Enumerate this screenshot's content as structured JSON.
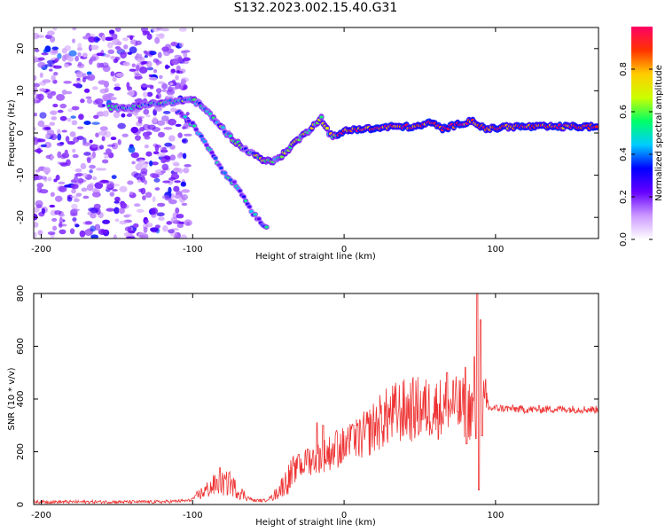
{
  "title": "S132.2023.002.15.40.G31",
  "chart_data": [
    {
      "type": "heatmap",
      "title": "",
      "xlabel": "Height of straight line (km)",
      "ylabel": "Frequency (Hz)",
      "xlim": [
        -205,
        168
      ],
      "ylim": [
        -25,
        25
      ],
      "xticks": [
        -200,
        -100,
        0,
        100
      ],
      "yticks": [
        -20,
        -10,
        0,
        10,
        20
      ],
      "colorbar": {
        "label": "Normalized spectral amplitude",
        "range": [
          0,
          1
        ],
        "ticks": [
          "0.0",
          "0.2",
          "0.4",
          "0.6",
          "0.8"
        ],
        "colormap": [
          "#ffffff",
          "#cc99ff",
          "#6600ff",
          "#0000ff",
          "#00ccff",
          "#00ff66",
          "#ccff00",
          "#ffcc00",
          "#ff3300",
          "#ff0066"
        ]
      },
      "noise_region": {
        "x_range": [
          -205,
          -103
        ],
        "y_range": [
          -25,
          25
        ],
        "amplitude": 0.15
      },
      "traces": [
        {
          "name": "main",
          "points": [
            [
              -155,
              6
            ],
            [
              -140,
              6
            ],
            [
              -125,
              7
            ],
            [
              -110,
              7.5
            ],
            [
              -100,
              8
            ],
            [
              -93,
              6
            ],
            [
              -85,
              3
            ],
            [
              -75,
              -1
            ],
            [
              -65,
              -4
            ],
            [
              -55,
              -6
            ],
            [
              -48,
              -7
            ],
            [
              -40,
              -5
            ],
            [
              -32,
              -2
            ],
            [
              -25,
              0
            ],
            [
              -20,
              2
            ],
            [
              -15,
              3.5
            ],
            [
              -10,
              0
            ],
            [
              -5,
              -1
            ],
            [
              0,
              0.5
            ],
            [
              10,
              1
            ],
            [
              20,
              1
            ],
            [
              30,
              1.5
            ],
            [
              40,
              1.5
            ],
            [
              50,
              1.5
            ],
            [
              55,
              2.5
            ],
            [
              60,
              2
            ],
            [
              65,
              1
            ],
            [
              70,
              1.5
            ],
            [
              75,
              2
            ],
            [
              80,
              2.5
            ],
            [
              85,
              3
            ],
            [
              90,
              1.5
            ],
            [
              95,
              1
            ],
            [
              100,
              1
            ],
            [
              105,
              1.5
            ],
            [
              120,
              1.5
            ],
            [
              140,
              1.5
            ],
            [
              168,
              1.5
            ]
          ]
        },
        {
          "name": "secondary",
          "points": [
            [
              -110,
              5
            ],
            [
              -100,
              2
            ],
            [
              -92,
              -2
            ],
            [
              -85,
              -6
            ],
            [
              -80,
              -9
            ],
            [
              -75,
              -11
            ],
            [
              -70,
              -13
            ],
            [
              -65,
              -16
            ],
            [
              -60,
              -19
            ],
            [
              -55,
              -21
            ],
            [
              -50,
              -23
            ]
          ]
        }
      ]
    },
    {
      "type": "line",
      "title": "",
      "xlabel": "Height of straight line (km)",
      "ylabel": "SNR (10 * v/v)",
      "xlim": [
        -205,
        168
      ],
      "ylim": [
        0,
        800
      ],
      "xticks": [
        -200,
        -100,
        0,
        100
      ],
      "yticks": [
        0,
        200,
        400,
        600,
        800
      ],
      "series": [
        {
          "color": "#ee3333",
          "trend": [
            [
              -205,
              10
            ],
            [
              -160,
              10
            ],
            [
              -120,
              10
            ],
            [
              -102,
              15
            ],
            [
              -95,
              40
            ],
            [
              -85,
              75
            ],
            [
              -75,
              80
            ],
            [
              -70,
              50
            ],
            [
              -60,
              15
            ],
            [
              -52,
              15
            ],
            [
              -45,
              40
            ],
            [
              -38,
              90
            ],
            [
              -30,
              140
            ],
            [
              -22,
              170
            ],
            [
              -12,
              190
            ],
            [
              -5,
              210
            ],
            [
              5,
              230
            ],
            [
              15,
              270
            ],
            [
              25,
              320
            ],
            [
              35,
              350
            ],
            [
              45,
              360
            ],
            [
              55,
              365
            ],
            [
              65,
              365
            ],
            [
              75,
              368
            ],
            [
              85,
              360
            ],
            [
              95,
              365
            ],
            [
              105,
              365
            ],
            [
              120,
              360
            ],
            [
              140,
              362
            ],
            [
              168,
              360
            ]
          ],
          "spikes": [
            [
              -82,
              140
            ],
            [
              -76,
              120
            ],
            [
              -30,
              190
            ],
            [
              -24,
              210
            ],
            [
              -18,
              310
            ],
            [
              -14,
              300
            ],
            [
              -5,
              280
            ],
            [
              2,
              250
            ],
            [
              6,
              300
            ],
            [
              68,
              500
            ],
            [
              72,
              470
            ],
            [
              80,
              520
            ],
            [
              81,
              230
            ],
            [
              86,
              560
            ],
            [
              87,
              250
            ],
            [
              88,
              810
            ],
            [
              89,
              55
            ],
            [
              90,
              700
            ],
            [
              91,
              260
            ]
          ]
        }
      ]
    }
  ]
}
